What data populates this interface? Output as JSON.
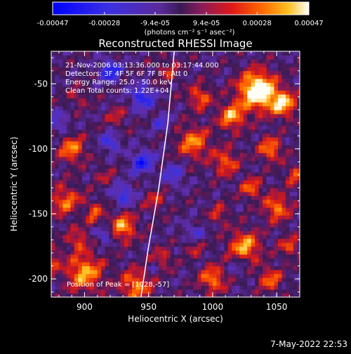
{
  "chart_data": {
    "type": "heatmap",
    "title": "Reconstructed RHESSI Image",
    "colorbar": {
      "tick_labels": [
        "-0.00047",
        "-0.00028",
        "-9.4e-05",
        "9.4e-05",
        "0.00028",
        "0.00047"
      ],
      "unit_label": "(photons cm⁻² s⁻¹ asec⁻²)",
      "range": [
        -0.00047,
        0.00047
      ]
    },
    "xlabel": "Heliocentric X (arcsec)",
    "ylabel": "Heliocentric Y (arcsec)",
    "x_ticks": [
      "900",
      "950",
      "1000",
      "1050"
    ],
    "y_ticks": [
      "-50",
      "-100",
      "-150",
      "-200"
    ],
    "xlim": [
      874,
      1068
    ],
    "ylim": [
      -214,
      -25
    ],
    "annotations": [
      "21-Nov-2006 03:13:36.000 to 03:17:44.000",
      "Detectors: 3F 4F 5F 6F 7F 8F, Att 0",
      "Energy Range: 25.0 - 50.0 keV",
      "Clean     Total counts: 1.22E+04"
    ],
    "peak_label": "Position of Peak = [1028,-57]",
    "peak_position": [
      1028,
      -57
    ],
    "limb_points": [
      [
        970,
        -25
      ],
      [
        965,
        -80
      ],
      [
        958,
        -130
      ],
      [
        950,
        -175
      ],
      [
        944,
        -214
      ]
    ]
  },
  "footer": {
    "date": "7-May-2022 22:53"
  },
  "colors": {
    "negative": "#0000ff",
    "zero": "#3a1a55",
    "positive_mid": "#ff4000",
    "positive_max": "#ffffff"
  }
}
